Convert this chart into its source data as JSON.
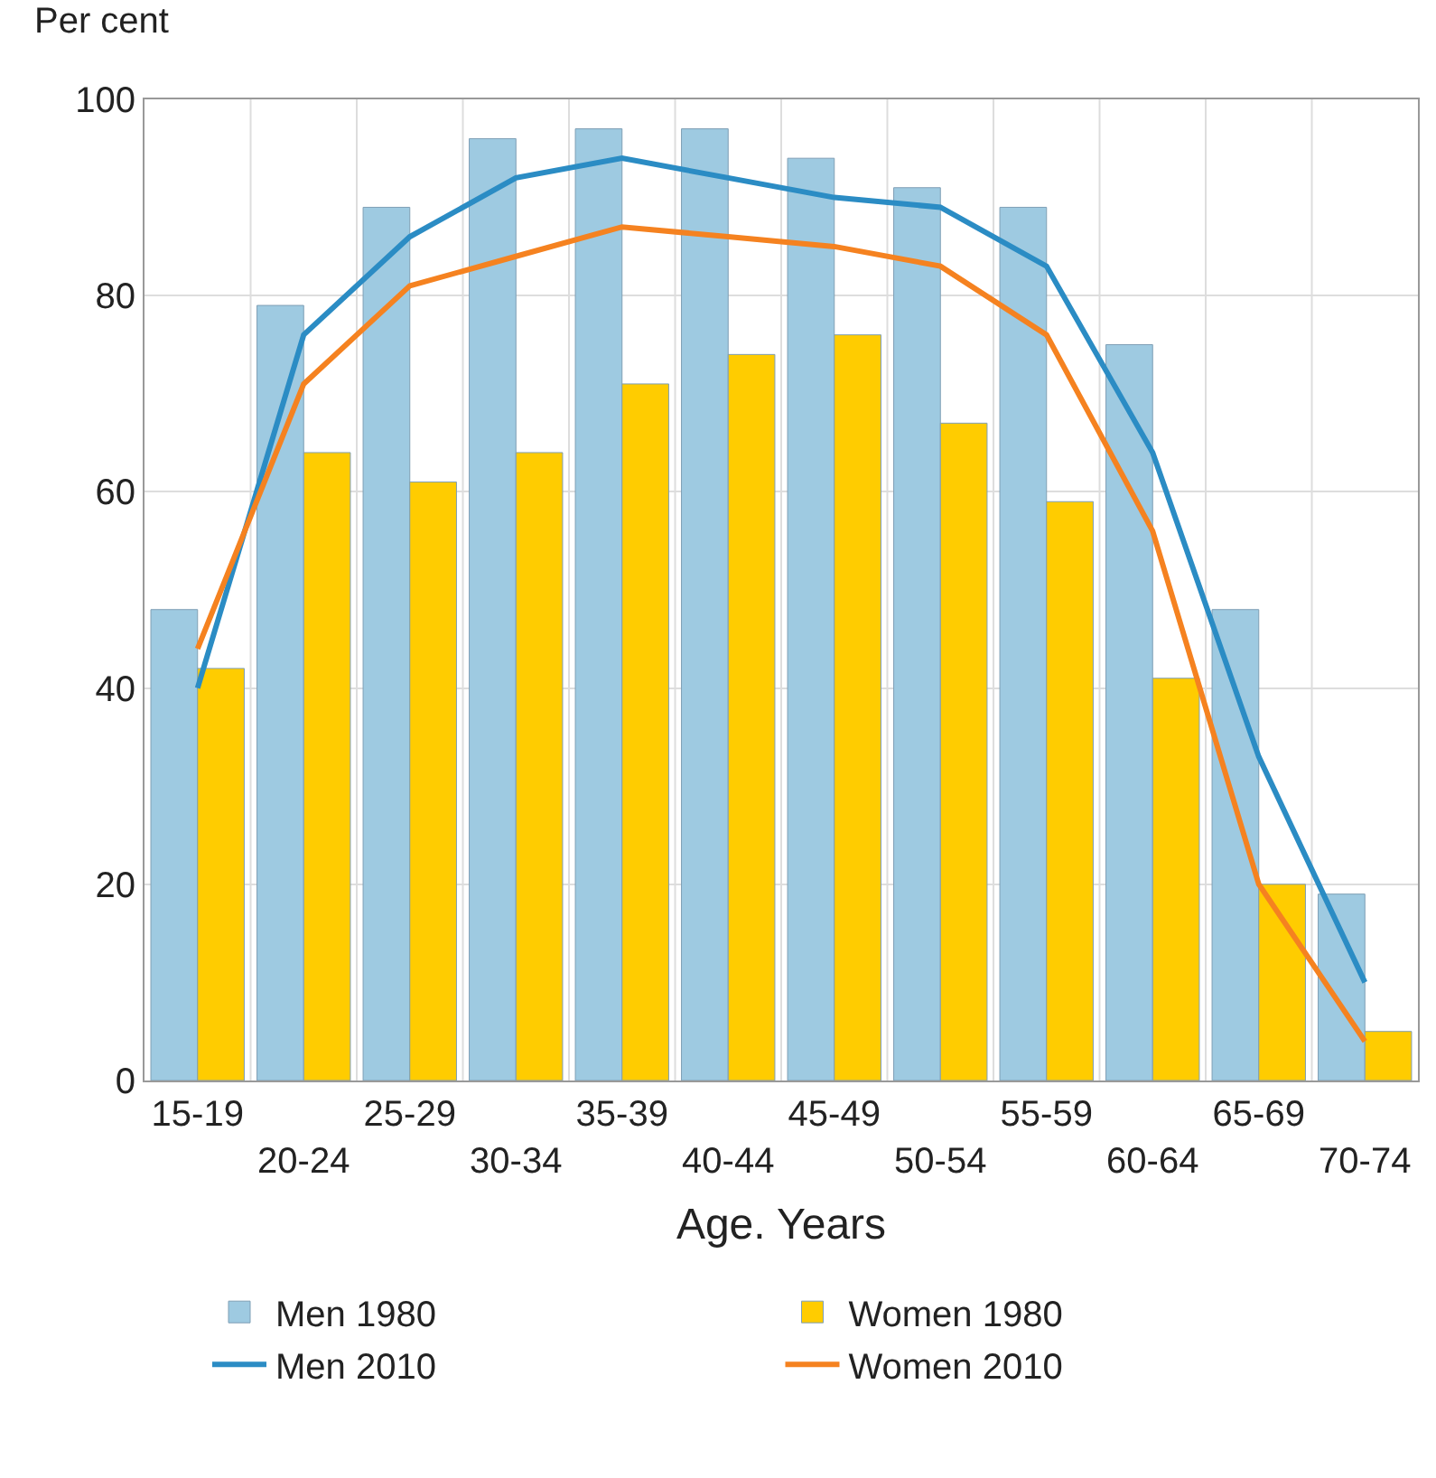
{
  "chart_data": {
    "type": "bar",
    "xlabel": "Age. Years",
    "ylabel": "Per cent",
    "categories": [
      "15-19",
      "20-24",
      "25-29",
      "30-34",
      "35-39",
      "40-44",
      "45-49",
      "50-54",
      "55-59",
      "60-64",
      "65-69",
      "70-74"
    ],
    "series": [
      {
        "name": "Men 1980",
        "color": "#9ecae1",
        "values": [
          48,
          79,
          89,
          96,
          97,
          97,
          94,
          91,
          89,
          75,
          48,
          19
        ]
      },
      {
        "name": "Women 1980",
        "color": "#ffcc00",
        "values": [
          42,
          64,
          61,
          64,
          71,
          74,
          76,
          67,
          59,
          41,
          20,
          5
        ]
      },
      {
        "name": "Men 2010",
        "type": "line",
        "color": "#2b8cc4",
        "values": [
          40,
          76,
          86,
          92,
          94,
          92,
          90,
          89,
          83,
          64,
          33,
          10
        ]
      },
      {
        "name": "Women 2010",
        "type": "line",
        "color": "#f58220",
        "values": [
          44,
          71,
          81,
          84,
          87,
          86,
          85,
          83,
          76,
          56,
          20,
          4
        ]
      }
    ],
    "ylim": [
      0,
      100
    ],
    "yticks": [
      0,
      20,
      40,
      60,
      80,
      100
    ],
    "grid": true,
    "legend": "bottom",
    "marker": "none",
    "line_style": "solid"
  }
}
